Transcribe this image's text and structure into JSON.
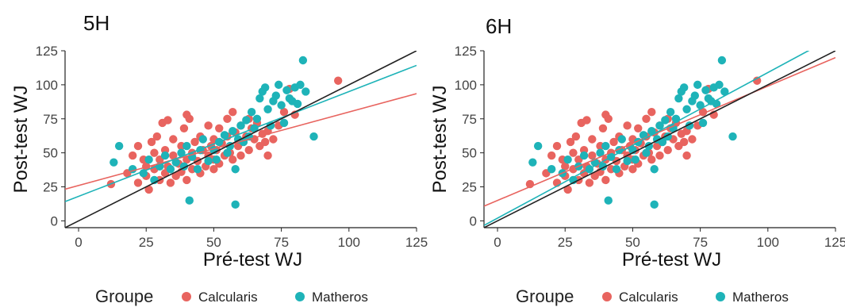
{
  "legend": {
    "title": "Groupe",
    "items": [
      {
        "label": "Calcularis",
        "color": "#E8645F"
      },
      {
        "label": "Matheros",
        "color": "#1EB3B8"
      }
    ]
  },
  "chart_data": [
    {
      "type": "scatter",
      "title": "5H",
      "xlabel": "Pré-test WJ",
      "ylabel": "Post-test WJ",
      "xlim": [
        -5,
        125
      ],
      "ylim": [
        -5,
        125
      ],
      "xticks": [
        "0",
        "25",
        "50",
        "75",
        "100",
        "125"
      ],
      "yticks": [
        "0",
        "25",
        "50",
        "75",
        "100",
        "125"
      ],
      "grid": false,
      "legend": "bottom",
      "series": [
        {
          "name": "Calcularis",
          "color": "#E8645F",
          "points": [
            [
              12,
              27
            ],
            [
              18,
              35
            ],
            [
              20,
              48
            ],
            [
              22,
              55
            ],
            [
              22,
              28
            ],
            [
              24,
              45
            ],
            [
              25,
              40
            ],
            [
              25,
              33
            ],
            [
              26,
              23
            ],
            [
              27,
              58
            ],
            [
              28,
              50
            ],
            [
              28,
              38
            ],
            [
              29,
              62
            ],
            [
              30,
              30
            ],
            [
              30,
              45
            ],
            [
              31,
              72
            ],
            [
              32,
              35
            ],
            [
              32,
              52
            ],
            [
              33,
              74
            ],
            [
              33,
              40
            ],
            [
              34,
              28
            ],
            [
              35,
              48
            ],
            [
              35,
              60
            ],
            [
              36,
              33
            ],
            [
              37,
              42
            ],
            [
              38,
              55
            ],
            [
              38,
              36
            ],
            [
              39,
              68
            ],
            [
              40,
              45
            ],
            [
              40,
              78
            ],
            [
              40,
              30
            ],
            [
              41,
              75
            ],
            [
              42,
              50
            ],
            [
              42,
              38
            ],
            [
              43,
              58
            ],
            [
              44,
              44
            ],
            [
              45,
              35
            ],
            [
              45,
              62
            ],
            [
              46,
              52
            ],
            [
              47,
              40
            ],
            [
              48,
              70
            ],
            [
              48,
              48
            ],
            [
              49,
              55
            ],
            [
              50,
              45
            ],
            [
              50,
              60
            ],
            [
              50,
              38
            ],
            [
              51,
              52
            ],
            [
              52,
              68
            ],
            [
              52,
              42
            ],
            [
              53,
              57
            ],
            [
              54,
              48
            ],
            [
              55,
              75
            ],
            [
              55,
              62
            ],
            [
              56,
              50
            ],
            [
              57,
              80
            ],
            [
              57,
              45
            ],
            [
              58,
              65
            ],
            [
              59,
              55
            ],
            [
              60,
              70
            ],
            [
              60,
              48
            ],
            [
              61,
              58
            ],
            [
              62,
              62
            ],
            [
              63,
              75
            ],
            [
              63,
              52
            ],
            [
              64,
              68
            ],
            [
              65,
              60
            ],
            [
              66,
              72
            ],
            [
              67,
              55
            ],
            [
              68,
              64
            ],
            [
              69,
              58
            ],
            [
              70,
              66
            ],
            [
              70,
              48
            ],
            [
              72,
              60
            ],
            [
              74,
              70
            ],
            [
              76,
              80
            ],
            [
              78,
              97
            ],
            [
              80,
              78
            ],
            [
              96,
              103
            ]
          ]
        },
        {
          "name": "Matheros",
          "color": "#1EB3B8",
          "points": [
            [
              13,
              43
            ],
            [
              15,
              55
            ],
            [
              20,
              38
            ],
            [
              24,
              35
            ],
            [
              26,
              45
            ],
            [
              28,
              30
            ],
            [
              30,
              40
            ],
            [
              32,
              48
            ],
            [
              34,
              38
            ],
            [
              36,
              43
            ],
            [
              38,
              50
            ],
            [
              39,
              40
            ],
            [
              40,
              55
            ],
            [
              41,
              15
            ],
            [
              42,
              47
            ],
            [
              44,
              38
            ],
            [
              45,
              52
            ],
            [
              46,
              60
            ],
            [
              48,
              44
            ],
            [
              50,
              52
            ],
            [
              51,
              45
            ],
            [
              52,
              58
            ],
            [
              54,
              63
            ],
            [
              55,
              50
            ],
            [
              56,
              55
            ],
            [
              57,
              66
            ],
            [
              58,
              38
            ],
            [
              58,
              12
            ],
            [
              59,
              60
            ],
            [
              60,
              70
            ],
            [
              61,
              58
            ],
            [
              62,
              74
            ],
            [
              63,
              62
            ],
            [
              64,
              80
            ],
            [
              65,
              68
            ],
            [
              66,
              75
            ],
            [
              67,
              90
            ],
            [
              68,
              95
            ],
            [
              69,
              98
            ],
            [
              70,
              82
            ],
            [
              71,
              70
            ],
            [
              72,
              88
            ],
            [
              73,
              92
            ],
            [
              74,
              100
            ],
            [
              75,
              85
            ],
            [
              76,
              72
            ],
            [
              77,
              96
            ],
            [
              78,
              90
            ],
            [
              79,
              88
            ],
            [
              80,
              98
            ],
            [
              81,
              86
            ],
            [
              82,
              100
            ],
            [
              83,
              118
            ],
            [
              84,
              95
            ],
            [
              87,
              62
            ]
          ]
        }
      ],
      "lines": [
        {
          "name": "Calcularis",
          "color": "#E8645F",
          "intercept": 26,
          "slope": 0.54
        },
        {
          "name": "Matheros",
          "color": "#1EB3B8",
          "intercept": 18,
          "slope": 0.77
        },
        {
          "name": "identity",
          "color": "#222222",
          "intercept": 0,
          "slope": 1
        }
      ]
    },
    {
      "type": "scatter",
      "title": "6H",
      "xlabel": "Pré-test WJ",
      "ylabel": "Post-test WJ",
      "xlim": [
        -5,
        125
      ],
      "ylim": [
        -5,
        125
      ],
      "xticks": [
        "0",
        "25",
        "50",
        "75",
        "100",
        "125"
      ],
      "yticks": [
        "0",
        "25",
        "50",
        "75",
        "100",
        "125"
      ],
      "grid": false,
      "legend": "bottom",
      "series": [
        {
          "name": "Calcularis",
          "color": "#E8645F",
          "points": [
            [
              12,
              27
            ],
            [
              18,
              35
            ],
            [
              20,
              48
            ],
            [
              22,
              55
            ],
            [
              22,
              28
            ],
            [
              24,
              45
            ],
            [
              25,
              40
            ],
            [
              25,
              33
            ],
            [
              26,
              23
            ],
            [
              27,
              58
            ],
            [
              28,
              50
            ],
            [
              28,
              38
            ],
            [
              29,
              62
            ],
            [
              30,
              30
            ],
            [
              30,
              45
            ],
            [
              31,
              72
            ],
            [
              32,
              35
            ],
            [
              32,
              52
            ],
            [
              33,
              74
            ],
            [
              33,
              40
            ],
            [
              34,
              28
            ],
            [
              35,
              48
            ],
            [
              35,
              60
            ],
            [
              36,
              33
            ],
            [
              37,
              42
            ],
            [
              38,
              55
            ],
            [
              38,
              36
            ],
            [
              39,
              68
            ],
            [
              40,
              45
            ],
            [
              40,
              78
            ],
            [
              40,
              30
            ],
            [
              41,
              75
            ],
            [
              42,
              50
            ],
            [
              42,
              38
            ],
            [
              43,
              58
            ],
            [
              44,
              44
            ],
            [
              45,
              35
            ],
            [
              45,
              62
            ],
            [
              46,
              52
            ],
            [
              47,
              40
            ],
            [
              48,
              70
            ],
            [
              48,
              48
            ],
            [
              49,
              55
            ],
            [
              50,
              45
            ],
            [
              50,
              60
            ],
            [
              50,
              38
            ],
            [
              51,
              52
            ],
            [
              52,
              68
            ],
            [
              52,
              42
            ],
            [
              53,
              57
            ],
            [
              54,
              48
            ],
            [
              55,
              75
            ],
            [
              55,
              62
            ],
            [
              56,
              50
            ],
            [
              57,
              80
            ],
            [
              57,
              45
            ],
            [
              58,
              65
            ],
            [
              59,
              55
            ],
            [
              60,
              70
            ],
            [
              60,
              48
            ],
            [
              61,
              58
            ],
            [
              62,
              62
            ],
            [
              63,
              75
            ],
            [
              63,
              52
            ],
            [
              64,
              68
            ],
            [
              65,
              60
            ],
            [
              66,
              72
            ],
            [
              67,
              55
            ],
            [
              68,
              64
            ],
            [
              69,
              58
            ],
            [
              70,
              66
            ],
            [
              70,
              48
            ],
            [
              72,
              60
            ],
            [
              74,
              70
            ],
            [
              76,
              80
            ],
            [
              78,
              97
            ],
            [
              80,
              78
            ],
            [
              96,
              103
            ]
          ]
        },
        {
          "name": "Matheros",
          "color": "#1EB3B8",
          "points": [
            [
              13,
              43
            ],
            [
              15,
              55
            ],
            [
              20,
              38
            ],
            [
              24,
              35
            ],
            [
              26,
              45
            ],
            [
              28,
              30
            ],
            [
              30,
              40
            ],
            [
              32,
              48
            ],
            [
              34,
              38
            ],
            [
              36,
              43
            ],
            [
              38,
              50
            ],
            [
              39,
              40
            ],
            [
              40,
              55
            ],
            [
              41,
              15
            ],
            [
              42,
              47
            ],
            [
              44,
              38
            ],
            [
              45,
              52
            ],
            [
              46,
              60
            ],
            [
              48,
              44
            ],
            [
              50,
              52
            ],
            [
              51,
              45
            ],
            [
              52,
              58
            ],
            [
              54,
              63
            ],
            [
              55,
              50
            ],
            [
              56,
              55
            ],
            [
              57,
              66
            ],
            [
              58,
              38
            ],
            [
              58,
              12
            ],
            [
              59,
              60
            ],
            [
              60,
              70
            ],
            [
              61,
              58
            ],
            [
              62,
              74
            ],
            [
              63,
              62
            ],
            [
              64,
              80
            ],
            [
              65,
              68
            ],
            [
              66,
              75
            ],
            [
              67,
              90
            ],
            [
              68,
              95
            ],
            [
              69,
              98
            ],
            [
              70,
              82
            ],
            [
              71,
              70
            ],
            [
              72,
              88
            ],
            [
              73,
              92
            ],
            [
              74,
              100
            ],
            [
              75,
              85
            ],
            [
              76,
              72
            ],
            [
              77,
              96
            ],
            [
              78,
              90
            ],
            [
              79,
              88
            ],
            [
              80,
              98
            ],
            [
              81,
              86
            ],
            [
              82,
              100
            ],
            [
              83,
              118
            ],
            [
              84,
              95
            ],
            [
              87,
              62
            ]
          ]
        }
      ],
      "lines": [
        {
          "name": "Calcularis",
          "color": "#E8645F",
          "intercept": 15,
          "slope": 0.84
        },
        {
          "name": "Matheros",
          "color": "#1EB3B8",
          "intercept": 2,
          "slope": 1.07
        },
        {
          "name": "identity",
          "color": "#222222",
          "intercept": 0,
          "slope": 1
        }
      ]
    }
  ]
}
